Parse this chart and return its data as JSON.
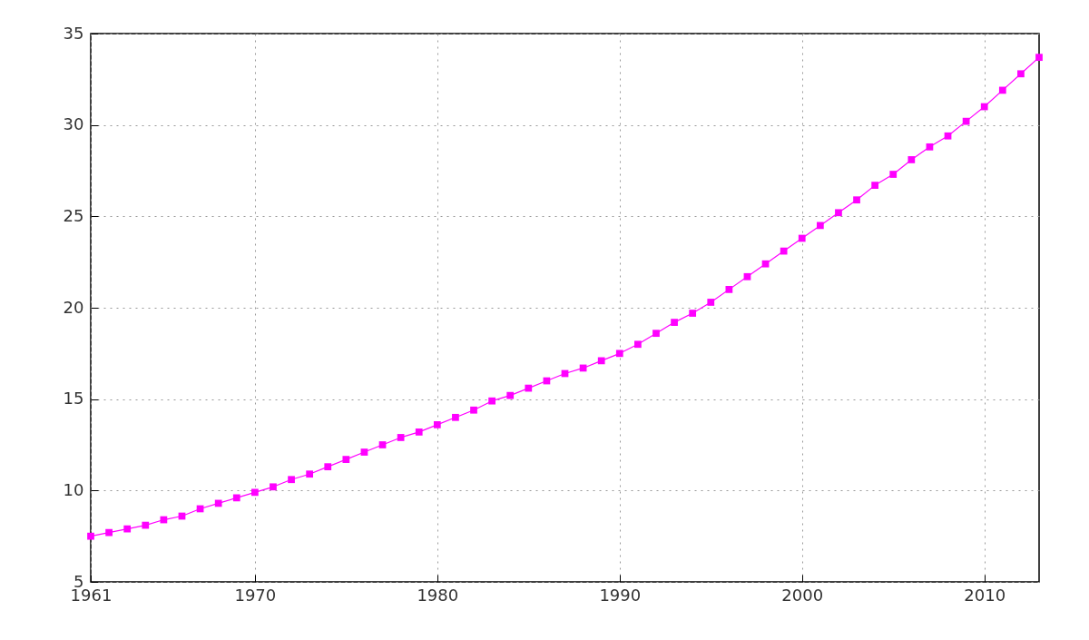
{
  "chart_data": {
    "type": "line",
    "x": [
      1961,
      1962,
      1963,
      1964,
      1965,
      1966,
      1967,
      1968,
      1969,
      1970,
      1971,
      1972,
      1973,
      1974,
      1975,
      1976,
      1977,
      1978,
      1979,
      1980,
      1981,
      1982,
      1983,
      1984,
      1985,
      1986,
      1987,
      1988,
      1989,
      1990,
      1991,
      1992,
      1993,
      1994,
      1995,
      1996,
      1997,
      1998,
      1999,
      2000,
      2001,
      2002,
      2003,
      2004,
      2005,
      2006,
      2007,
      2008,
      2009,
      2010,
      2011,
      2012,
      2013
    ],
    "series": [
      {
        "color": "#ff00ff",
        "values": [
          7.5,
          7.7,
          7.9,
          8.1,
          8.4,
          8.6,
          9.0,
          9.3,
          9.6,
          9.9,
          10.2,
          10.6,
          10.9,
          11.3,
          11.7,
          12.1,
          12.5,
          12.9,
          13.2,
          13.6,
          14.0,
          14.4,
          14.9,
          15.2,
          15.6,
          16.0,
          16.4,
          16.7,
          17.1,
          17.5,
          18.0,
          18.6,
          19.2,
          19.7,
          20.3,
          21.0,
          21.7,
          22.4,
          23.1,
          23.8,
          24.5,
          25.2,
          25.9,
          26.7,
          27.3,
          28.1,
          28.8,
          29.4,
          30.2,
          31.0,
          31.9,
          32.8,
          33.7
        ]
      }
    ],
    "xlim": [
      1961,
      2013
    ],
    "xticks": [
      1961,
      1970,
      1980,
      1990,
      2000,
      2010
    ],
    "ylim": [
      5,
      35
    ],
    "yticks": [
      5,
      10,
      15,
      20,
      25,
      30,
      35
    ],
    "grid": true,
    "marker": "square",
    "line_style": "solid"
  }
}
